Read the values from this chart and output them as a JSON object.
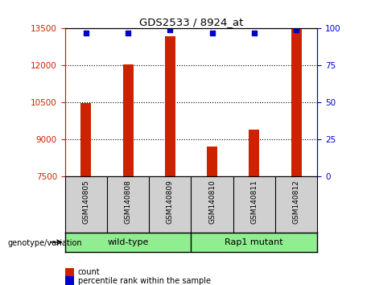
{
  "title": "GDS2533 / 8924_at",
  "categories": [
    "GSM140805",
    "GSM140808",
    "GSM140809",
    "GSM140810",
    "GSM140811",
    "GSM140812"
  ],
  "counts": [
    10480,
    12060,
    13200,
    8720,
    9420,
    13480
  ],
  "percentile_ranks": [
    97,
    97,
    99,
    97,
    97,
    99
  ],
  "ylim_left": [
    7500,
    13500
  ],
  "ylim_right": [
    0,
    100
  ],
  "yticks_left": [
    7500,
    9000,
    10500,
    12000,
    13500
  ],
  "yticks_right": [
    0,
    25,
    50,
    75,
    100
  ],
  "groups": [
    {
      "label": "wild-type",
      "span": [
        0,
        2
      ]
    },
    {
      "label": "Rap1 mutant",
      "span": [
        3,
        5
      ]
    }
  ],
  "bar_color": "#cc2200",
  "dot_color": "#0000cc",
  "bar_width": 0.25,
  "tick_label_color_left": "#cc2200",
  "tick_label_color_right": "#0000cc",
  "grid_color": "#000000",
  "legend_items": [
    {
      "color": "#cc2200",
      "label": "count"
    },
    {
      "color": "#0000cc",
      "label": "percentile rank within the sample"
    }
  ],
  "genotype_label": "genotype/variation",
  "label_area_color": "#d0d0d0",
  "group_area_color": "#90ee90"
}
